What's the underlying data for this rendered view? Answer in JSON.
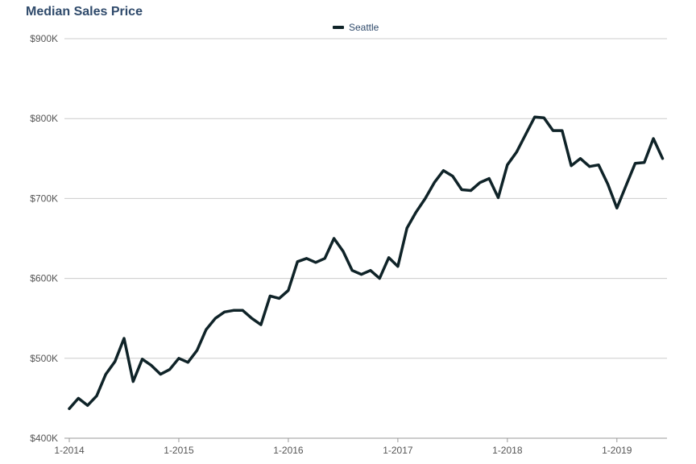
{
  "chart_data": {
    "type": "line",
    "title": "Median Sales Price",
    "xlabel": "",
    "ylabel": "",
    "ylim": [
      400000,
      900000
    ],
    "y_ticks": [
      400000,
      500000,
      600000,
      700000,
      800000,
      900000
    ],
    "y_tick_labels": [
      "$400K",
      "$500K",
      "$600K",
      "$700K",
      "$800K",
      "$900K"
    ],
    "x_ticks": [
      0,
      12,
      24,
      36,
      48,
      60
    ],
    "x_tick_labels": [
      "1-2014",
      "1-2015",
      "1-2016",
      "1-2017",
      "1-2018",
      "1-2019"
    ],
    "grid": "horizontal",
    "legend_position": "top-center",
    "x": [
      "2014-01",
      "2014-02",
      "2014-03",
      "2014-04",
      "2014-05",
      "2014-06",
      "2014-07",
      "2014-08",
      "2014-09",
      "2014-10",
      "2014-11",
      "2014-12",
      "2015-01",
      "2015-02",
      "2015-03",
      "2015-04",
      "2015-05",
      "2015-06",
      "2015-07",
      "2015-08",
      "2015-09",
      "2015-10",
      "2015-11",
      "2015-12",
      "2016-01",
      "2016-02",
      "2016-03",
      "2016-04",
      "2016-05",
      "2016-06",
      "2016-07",
      "2016-08",
      "2016-09",
      "2016-10",
      "2016-11",
      "2016-12",
      "2017-01",
      "2017-02",
      "2017-03",
      "2017-04",
      "2017-05",
      "2017-06",
      "2017-07",
      "2017-08",
      "2017-09",
      "2017-10",
      "2017-11",
      "2017-12",
      "2018-01",
      "2018-02",
      "2018-03",
      "2018-04",
      "2018-05",
      "2018-06",
      "2018-07",
      "2018-08",
      "2018-09",
      "2018-10",
      "2018-11",
      "2018-12",
      "2019-01",
      "2019-02",
      "2019-03",
      "2019-04",
      "2019-05",
      "2019-06"
    ],
    "series": [
      {
        "name": "Seattle",
        "color": "#0f2328",
        "values": [
          437000,
          450000,
          441000,
          453000,
          480000,
          496000,
          525000,
          471000,
          499000,
          491000,
          480000,
          486000,
          500000,
          495000,
          510000,
          536000,
          550000,
          558000,
          560000,
          560000,
          550000,
          542000,
          578000,
          575000,
          585000,
          621000,
          625000,
          620000,
          625000,
          650000,
          634000,
          610000,
          605000,
          610000,
          600000,
          626000,
          615000,
          663000,
          683000,
          700000,
          720000,
          735000,
          728000,
          711000,
          710000,
          720000,
          725000,
          701000,
          742000,
          758000,
          780000,
          802000,
          801000,
          785000,
          785000,
          741000,
          750000,
          740000,
          742000,
          718000,
          688000,
          716000,
          744000,
          745000,
          775000,
          750000
        ]
      }
    ]
  }
}
